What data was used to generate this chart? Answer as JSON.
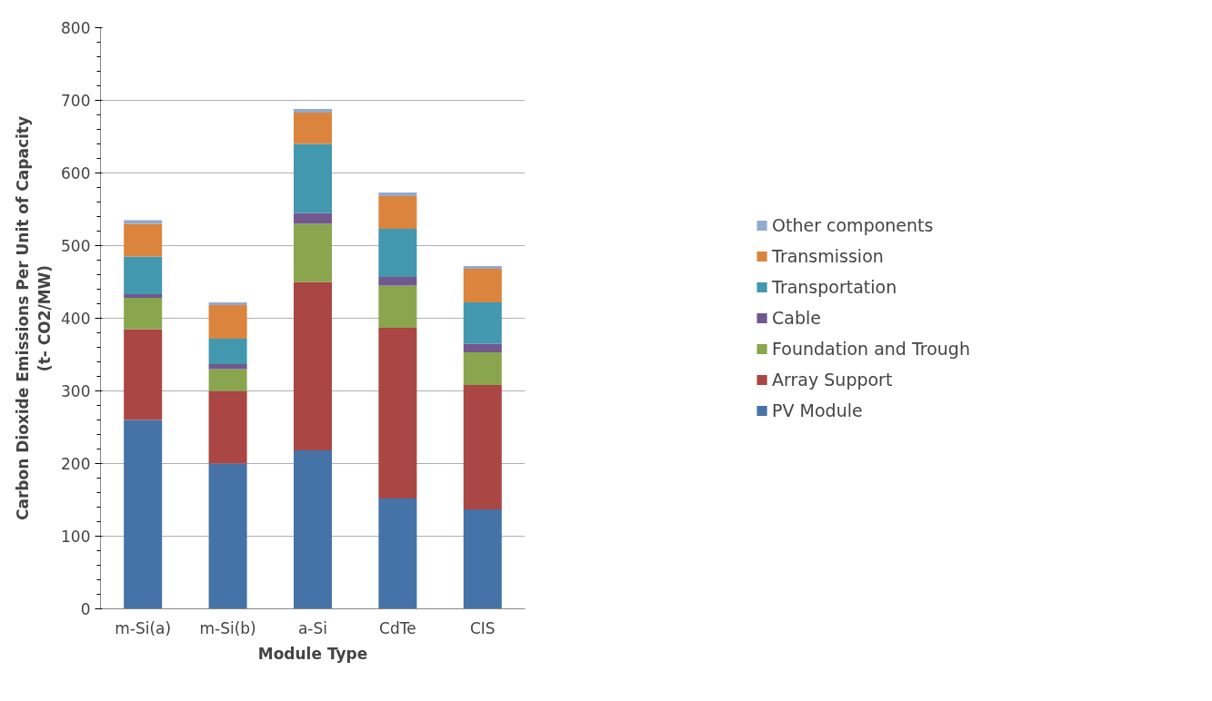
{
  "chart_data": {
    "type": "bar",
    "stacked": true,
    "xlabel": "Module Type",
    "ylabel": "Carbon Dioxide Emissions Per Unit of Capacity\n(t- CO2/MW)",
    "categories": [
      "m-Si(a)",
      "m-Si(b)",
      "a-Si",
      "CdTe",
      "CIS"
    ],
    "series": [
      {
        "name": "PV Module",
        "color": "#4572a7",
        "values": [
          260,
          200,
          218,
          152,
          137
        ]
      },
      {
        "name": "Array Support",
        "color": "#aa4643",
        "values": [
          125,
          100,
          232,
          235,
          171
        ]
      },
      {
        "name": "Foundation and Trough",
        "color": "#89a54e",
        "values": [
          43,
          30,
          80,
          58,
          45
        ]
      },
      {
        "name": "Cable",
        "color": "#71588f",
        "values": [
          5,
          7,
          15,
          12,
          12
        ]
      },
      {
        "name": "Transportation",
        "color": "#4198af",
        "values": [
          52,
          35,
          95,
          66,
          57
        ]
      },
      {
        "name": "Transmission",
        "color": "#db843d",
        "values": [
          45,
          46,
          43,
          45,
          46
        ]
      },
      {
        "name": "Other components",
        "color": "#93a9cf",
        "values": [
          5,
          4,
          5,
          5,
          4
        ]
      }
    ],
    "ylim": [
      0,
      800
    ],
    "yticks": [
      0,
      100,
      200,
      300,
      400,
      500,
      600,
      700,
      800
    ],
    "grid": "y",
    "legend": "right"
  }
}
